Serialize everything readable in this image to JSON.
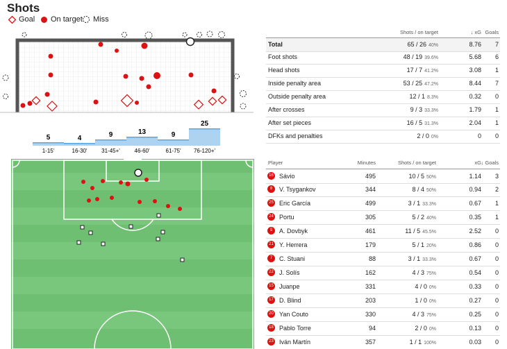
{
  "header": {
    "title": "Shots",
    "legend": [
      "Goal",
      "On target",
      "Miss"
    ]
  },
  "time_bins": {
    "categories": [
      "1-15'",
      "16-30'",
      "31-45+'",
      "46-60'",
      "61-75'",
      "76-120+'"
    ],
    "values": [
      5,
      4,
      9,
      13,
      9,
      25
    ]
  },
  "stats": {
    "columns": [
      "Shots / on target",
      "↓ xG",
      "Goals"
    ],
    "rows": [
      {
        "label": "Total",
        "shots": "65 / 26",
        "pct": "40%",
        "xg": 8.76,
        "goals": 7
      },
      {
        "label": "Foot shots",
        "shots": "48 / 19",
        "pct": "39.6%",
        "xg": 5.68,
        "goals": 6
      },
      {
        "label": "Head shots",
        "shots": "17 / 7",
        "pct": "41.2%",
        "xg": 3.08,
        "goals": 1
      },
      {
        "label": "Inside penalty area",
        "shots": "53 / 25",
        "pct": "47.2%",
        "xg": 8.44,
        "goals": 7
      },
      {
        "label": "Outside penalty area",
        "shots": "12 / 1",
        "pct": "8.3%",
        "xg": 0.32,
        "goals": 0
      },
      {
        "label": "After crosses",
        "shots": "9 / 3",
        "pct": "33.3%",
        "xg": 1.79,
        "goals": 1
      },
      {
        "label": "After set pieces",
        "shots": "16 / 5",
        "pct": "31.3%",
        "xg": 2.04,
        "goals": 1
      },
      {
        "label": "DFKs and penalties",
        "shots": "2 / 0",
        "pct": "0%",
        "xg": 0,
        "goals": 0
      }
    ]
  },
  "players": {
    "columns": [
      "Player",
      "Minutes",
      "Shots / on target",
      "xG",
      "↓ Goals"
    ],
    "rows": [
      {
        "number": "16",
        "name": "Sávio",
        "minutes": 495,
        "shots": "10 / 5",
        "pct": "50%",
        "xg": 1.14,
        "goals": 3
      },
      {
        "number": "8",
        "name": "V. Tsygankov",
        "minutes": 344,
        "shots": "8 / 4",
        "pct": "50%",
        "xg": 0.94,
        "goals": 2
      },
      {
        "number": "25",
        "name": "Eric García",
        "minutes": 499,
        "shots": "3 / 1",
        "pct": "33.3%",
        "xg": 0.67,
        "goals": 1
      },
      {
        "number": "24",
        "name": "Portu",
        "minutes": 305,
        "shots": "5 / 2",
        "pct": "40%",
        "xg": 0.35,
        "goals": 1
      },
      {
        "number": "9",
        "name": "A. Dovbyk",
        "minutes": 461,
        "shots": "11 / 5",
        "pct": "45.5%",
        "xg": 2.52,
        "goals": 0
      },
      {
        "number": "21",
        "name": "Y. Herrera",
        "minutes": 179,
        "shots": "5 / 1",
        "pct": "20%",
        "xg": 0.86,
        "goals": 0
      },
      {
        "number": "7",
        "name": "C. Stuani",
        "minutes": 88,
        "shots": "3 / 1",
        "pct": "33.3%",
        "xg": 0.67,
        "goals": 0
      },
      {
        "number": "22",
        "name": "J. Solís",
        "minutes": 162,
        "shots": "4 / 3",
        "pct": "75%",
        "xg": 0.54,
        "goals": 0
      },
      {
        "number": "15",
        "name": "Juanpe",
        "minutes": 331,
        "shots": "4 / 0",
        "pct": "0%",
        "xg": 0.33,
        "goals": 0
      },
      {
        "number": "17",
        "name": "D. Blind",
        "minutes": 203,
        "shots": "1 / 0",
        "pct": "0%",
        "xg": 0.27,
        "goals": 0
      },
      {
        "number": "20",
        "name": "Yan Couto",
        "minutes": 330,
        "shots": "4 / 3",
        "pct": "75%",
        "xg": 0.25,
        "goals": 0
      },
      {
        "number": "18",
        "name": "Pablo Torre",
        "minutes": 94,
        "shots": "2 / 0",
        "pct": "0%",
        "xg": 0.13,
        "goals": 0
      },
      {
        "number": "23",
        "name": "Iván Martín",
        "minutes": 357,
        "shots": "1 / 1",
        "pct": "100%",
        "xg": 0.03,
        "goals": 0
      }
    ]
  }
}
